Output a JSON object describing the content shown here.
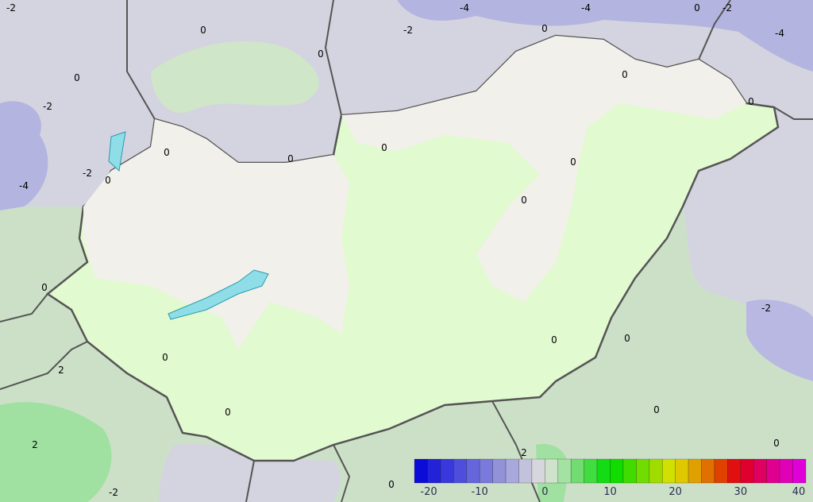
{
  "map": {
    "background_colors": {
      "north": "#d4d4e0",
      "south": "#cce0c8",
      "hungary_light": "#f1f0ea",
      "hungary_green": "#e2fad0",
      "lake": "#8fdde6",
      "border": "#555555"
    },
    "contour_labels": [
      "-2",
      "-4",
      "-4",
      "-2",
      "0",
      "-2",
      "0",
      "0",
      "-2",
      "-4",
      "0",
      "0",
      "-2",
      "-4",
      "0",
      "0",
      "0",
      "0",
      "0",
      "0",
      "0",
      "0",
      "0",
      "0",
      "0",
      "0",
      "-2",
      "2",
      "2",
      "0",
      "0",
      "2",
      "0",
      "-2",
      "0"
    ]
  },
  "colorbar": {
    "tick_labels": [
      "-20",
      "-10",
      "0",
      "10",
      "20",
      "30",
      "40"
    ],
    "range": [
      -20,
      40
    ],
    "step": 2,
    "colors": [
      "#0c0cd8",
      "#2222d8",
      "#3838dc",
      "#4e4edc",
      "#6666dc",
      "#7a7adc",
      "#9292d8",
      "#a8a8dc",
      "#c2c2dc",
      "#d6d6de",
      "#cfe3cc",
      "#a4e2a4",
      "#72dc72",
      "#40dc40",
      "#14dc14",
      "#10dc00",
      "#40dc00",
      "#70dc00",
      "#a0dc00",
      "#d0e000",
      "#e0c800",
      "#e0a000",
      "#e07000",
      "#e04000",
      "#e01010",
      "#e00030",
      "#e00060",
      "#e00090",
      "#e000b8",
      "#e000d8"
    ]
  }
}
